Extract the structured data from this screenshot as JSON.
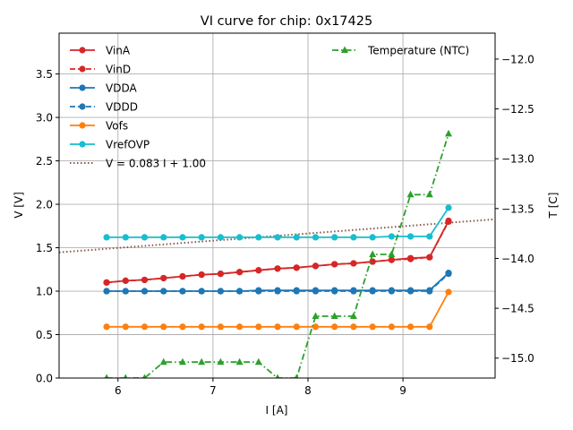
{
  "chart_data": {
    "type": "line",
    "title": "VI curve for chip: 0x17425",
    "xlabel": "I [A]",
    "ylabel": "V [V]",
    "y2label": "T [C]",
    "xlim": [
      5.38,
      9.97
    ],
    "ylim": [
      0.0,
      3.97
    ],
    "y2lim": [
      -15.2,
      -11.74
    ],
    "xticks": [
      6,
      7,
      8,
      9
    ],
    "xtick_labels": [
      "6",
      "7",
      "8",
      "9"
    ],
    "yticks": [
      0.0,
      0.5,
      1.0,
      1.5,
      2.0,
      2.5,
      3.0,
      3.5
    ],
    "ytick_labels": [
      "0.0",
      "0.5",
      "1.0",
      "1.5",
      "2.0",
      "2.5",
      "3.0",
      "3.5"
    ],
    "y2ticks": [
      -15.0,
      -14.5,
      -14.0,
      -13.5,
      -13.0,
      -12.5,
      -12.0
    ],
    "y2tick_labels": [
      "−15.0",
      "−14.5",
      "−14.0",
      "−13.5",
      "−13.0",
      "−12.5",
      "−12.0"
    ],
    "grid": true,
    "x": [
      5.88,
      6.08,
      6.28,
      6.48,
      6.68,
      6.88,
      7.08,
      7.28,
      7.48,
      7.68,
      7.88,
      8.08,
      8.28,
      8.48,
      8.68,
      8.88,
      9.08,
      9.28,
      9.48
    ],
    "series": [
      {
        "name": "VinA",
        "axis": "left",
        "color": "#d62728",
        "style": "solid",
        "marker": "circle",
        "values": [
          1.1,
          1.12,
          1.13,
          1.15,
          1.17,
          1.19,
          1.2,
          1.22,
          1.24,
          1.26,
          1.27,
          1.29,
          1.31,
          1.32,
          1.34,
          1.36,
          1.38,
          1.39,
          1.81
        ]
      },
      {
        "name": "VinD",
        "axis": "left",
        "color": "#d62728",
        "style": "dashed",
        "marker": "circle",
        "values": [
          1.1,
          1.12,
          1.13,
          1.15,
          1.17,
          1.19,
          1.2,
          1.22,
          1.24,
          1.26,
          1.27,
          1.29,
          1.31,
          1.32,
          1.34,
          1.36,
          1.37,
          1.39,
          1.8
        ]
      },
      {
        "name": "VDDA",
        "axis": "left",
        "color": "#1f77b4",
        "style": "solid",
        "marker": "circle",
        "values": [
          1.0,
          1.0,
          1.0,
          1.0,
          1.0,
          1.0,
          1.0,
          1.0,
          1.01,
          1.01,
          1.01,
          1.01,
          1.01,
          1.01,
          1.01,
          1.01,
          1.01,
          1.01,
          1.21
        ]
      },
      {
        "name": "VDDD",
        "axis": "left",
        "color": "#1f77b4",
        "style": "dashed",
        "marker": "circle",
        "values": [
          1.0,
          1.0,
          1.0,
          1.0,
          1.0,
          1.0,
          1.0,
          1.0,
          1.0,
          1.0,
          1.0,
          1.0,
          1.0,
          1.0,
          1.0,
          1.0,
          1.0,
          1.0,
          1.2
        ]
      },
      {
        "name": "Vofs",
        "axis": "left",
        "color": "#ff7f0e",
        "style": "solid",
        "marker": "circle",
        "values": [
          0.59,
          0.59,
          0.59,
          0.59,
          0.59,
          0.59,
          0.59,
          0.59,
          0.59,
          0.59,
          0.59,
          0.59,
          0.59,
          0.59,
          0.59,
          0.59,
          0.59,
          0.59,
          0.99
        ]
      },
      {
        "name": "VrefOVP",
        "axis": "left",
        "color": "#17becf",
        "style": "solid",
        "marker": "circle",
        "values": [
          1.62,
          1.62,
          1.62,
          1.62,
          1.62,
          1.62,
          1.62,
          1.62,
          1.62,
          1.62,
          1.62,
          1.62,
          1.62,
          1.62,
          1.62,
          1.63,
          1.63,
          1.63,
          1.96
        ]
      },
      {
        "name": "Temperature (NTC)",
        "axis": "right",
        "color": "#2ca02c",
        "style": "dashdot",
        "marker": "triangle",
        "values": [
          -15.2,
          -15.2,
          -15.2,
          -15.04,
          -15.04,
          -15.04,
          -15.04,
          -15.04,
          -15.04,
          -15.2,
          -15.2,
          -14.58,
          -14.58,
          -14.58,
          -13.96,
          -13.96,
          -13.36,
          -13.36,
          -12.75
        ]
      }
    ],
    "fit_line": {
      "name": "V = 0.083 I + 1.00",
      "slope": 0.083,
      "intercept": 1.0,
      "color": "#8c564b",
      "style": "dotted"
    },
    "legends": [
      {
        "placement": "top-left",
        "entries": [
          "VinA",
          "VinD",
          "VDDA",
          "VDDD",
          "Vofs",
          "VrefOVP",
          "V = 0.083 I + 1.00"
        ]
      },
      {
        "placement": "top-right",
        "entries": [
          "Temperature (NTC)"
        ]
      }
    ]
  }
}
